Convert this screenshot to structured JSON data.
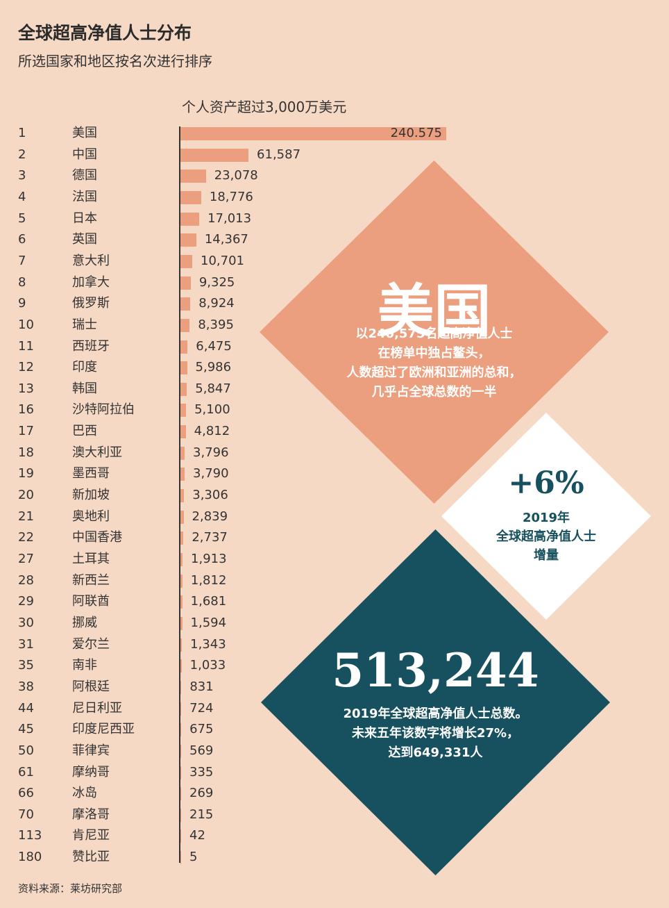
{
  "header": {
    "title": "全球超高净值人士分布",
    "subtitle": "所选国家和地区按名次进行排序",
    "series_label": "个人资产超过3,000万美元"
  },
  "footer": {
    "source": "资料来源：莱坊研究部"
  },
  "colors": {
    "background": "#f6d9c4",
    "bar": "#ec9f7e",
    "usa_diamond": "#ec9f7e",
    "growth_diamond": "#ffffff",
    "total_diamond": "#17505e"
  },
  "chart_data": {
    "type": "bar",
    "orientation": "horizontal",
    "title": "全球超高净值人士分布",
    "subtitle": "所选国家和地区按名次进行排序",
    "series_name": "个人资产超过3,000万美元",
    "xlim": [
      0,
      240575
    ],
    "rows": [
      {
        "rank": "1",
        "name": "美国",
        "value": 240575,
        "label": "240.575"
      },
      {
        "rank": "2",
        "name": "中国",
        "value": 61587,
        "label": "61,587"
      },
      {
        "rank": "3",
        "name": "德国",
        "value": 23078,
        "label": "23,078"
      },
      {
        "rank": "4",
        "name": "法国",
        "value": 18776,
        "label": "18,776"
      },
      {
        "rank": "5",
        "name": "日本",
        "value": 17013,
        "label": "17,013"
      },
      {
        "rank": "6",
        "name": "英国",
        "value": 14367,
        "label": "14,367"
      },
      {
        "rank": "7",
        "name": "意大利",
        "value": 10701,
        "label": "10,701"
      },
      {
        "rank": "8",
        "name": "加拿大",
        "value": 9325,
        "label": "9,325"
      },
      {
        "rank": "9",
        "name": "俄罗斯",
        "value": 8924,
        "label": "8,924"
      },
      {
        "rank": "10",
        "name": "瑞士",
        "value": 8395,
        "label": "8,395"
      },
      {
        "rank": "11",
        "name": "西班牙",
        "value": 6475,
        "label": "6,475"
      },
      {
        "rank": "12",
        "name": "印度",
        "value": 5986,
        "label": "5,986"
      },
      {
        "rank": "13",
        "name": "韩国",
        "value": 5847,
        "label": "5,847"
      },
      {
        "rank": "16",
        "name": "沙特阿拉伯",
        "value": 5100,
        "label": "5,100"
      },
      {
        "rank": "17",
        "name": "巴西",
        "value": 4812,
        "label": "4,812"
      },
      {
        "rank": "18",
        "name": "澳大利亚",
        "value": 3796,
        "label": "3,796"
      },
      {
        "rank": "19",
        "name": "墨西哥",
        "value": 3790,
        "label": "3,790"
      },
      {
        "rank": "20",
        "name": "新加坡",
        "value": 3306,
        "label": "3,306"
      },
      {
        "rank": "21",
        "name": "奥地利",
        "value": 2839,
        "label": "2,839"
      },
      {
        "rank": "22",
        "name": "中国香港",
        "value": 2737,
        "label": "2,737"
      },
      {
        "rank": "27",
        "name": "土耳其",
        "value": 1913,
        "label": "1,913"
      },
      {
        "rank": "28",
        "name": "新西兰",
        "value": 1812,
        "label": "1,812"
      },
      {
        "rank": "29",
        "name": "阿联酋",
        "value": 1681,
        "label": "1,681"
      },
      {
        "rank": "30",
        "name": "挪威",
        "value": 1594,
        "label": "1,594"
      },
      {
        "rank": "31",
        "name": "爱尔兰",
        "value": 1343,
        "label": "1,343"
      },
      {
        "rank": "35",
        "name": "南非",
        "value": 1033,
        "label": "1,033"
      },
      {
        "rank": "38",
        "name": "阿根廷",
        "value": 831,
        "label": "831"
      },
      {
        "rank": "44",
        "name": "尼日利亚",
        "value": 724,
        "label": "724"
      },
      {
        "rank": "45",
        "name": "印度尼西亚",
        "value": 675,
        "label": "675"
      },
      {
        "rank": "50",
        "name": "菲律宾",
        "value": 569,
        "label": "569"
      },
      {
        "rank": "61",
        "name": "摩纳哥",
        "value": 335,
        "label": "335"
      },
      {
        "rank": "66",
        "name": "冰岛",
        "value": 269,
        "label": "269"
      },
      {
        "rank": "70",
        "name": "摩洛哥",
        "value": 215,
        "label": "215"
      },
      {
        "rank": "113",
        "name": "肯尼亚",
        "value": 42,
        "label": "42"
      },
      {
        "rank": "180",
        "name": "赞比亚",
        "value": 5,
        "label": "5"
      }
    ]
  },
  "callouts": {
    "usa": {
      "headline": "美国",
      "lines": [
        "以240,575名超高净值人士",
        "在榜单中独占鳌头，",
        "人数超过了欧洲和亚洲的总和，",
        "几乎占全球总数的一半"
      ]
    },
    "growth": {
      "headline": "+6%",
      "lines": [
        "2019年",
        "全球超高净值人士",
        "增量"
      ]
    },
    "total": {
      "headline": "513,244",
      "lines": [
        "2019年全球超高净值人士总数。",
        "未来五年该数字将增长27%，",
        "达到649,331人"
      ]
    }
  }
}
